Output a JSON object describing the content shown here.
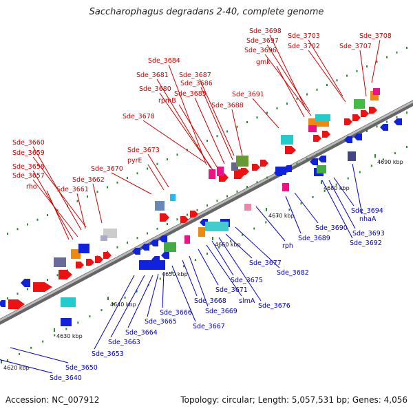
{
  "title": "Saccharophagus degradans 2-40, complete genome",
  "footer": {
    "accession": "Accession: NC_007912",
    "summary": "Topology: circular; Length: 5,057,531 bp; Genes: 4,056"
  },
  "colors": {
    "red_label": "#d00000",
    "blue_label": "#0000c8",
    "forward_gene": "#ee1111",
    "reverse_gene": "#1122dd",
    "backbone": "#999999"
  },
  "kbp_marks": [
    "4620 kbp",
    "4630 kbp",
    "4640 kbp",
    "4650 kbp",
    "4660 kbp",
    "4670 kbp",
    "4680 kbp",
    "4690 kbp"
  ],
  "top_labels": [
    "Sde_3698",
    "Sde_3697",
    "Sde_3696",
    "gmk",
    "Sde_3703",
    "Sde_3702",
    "Sde_3708",
    "Sde_3707",
    "Sde_3684",
    "Sde_3681",
    "Sde_3687",
    "Sde_3686",
    "Sde_3680",
    "Sde_3685",
    "rpmB",
    "Sde_3688",
    "Sde_3691",
    "Sde_3678",
    "Sde_3673",
    "pyrE",
    "Sde_3670",
    "Sde_3660",
    "Sde_3659",
    "Sde_3658",
    "Sde_3657",
    "rho",
    "Sde_3661",
    "Sde_3662"
  ],
  "bottom_labels": [
    "Sde_3640",
    "Sde_3650",
    "Sde_3653",
    "Sde_3663",
    "Sde_3664",
    "Sde_3665",
    "Sde_3666",
    "Sde_3667",
    "Sde_3668",
    "Sde_3669",
    "Sde_3671",
    "slmA",
    "Sde_3675",
    "Sde_3676",
    "Sde_3677",
    "Sde_3682",
    "rph",
    "Sde_3689",
    "Sde_3690",
    "Sde_3692",
    "Sde_3693",
    "Sde_3694",
    "nhaA"
  ]
}
